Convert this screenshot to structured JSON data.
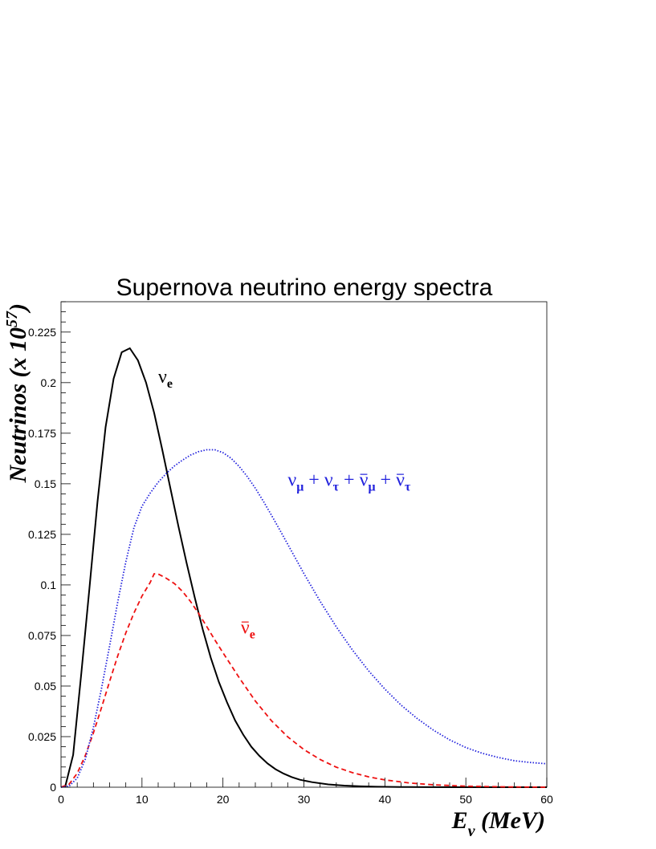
{
  "chart_data": {
    "type": "line",
    "title": "Supernova neutrino energy spectra",
    "xlabel": {
      "main": "E",
      "sub": "ν",
      "rest": " (MeV)"
    },
    "ylabel": {
      "main": "Neutrinos (x 10",
      "sup": "57",
      "rest": ")"
    },
    "xlim": [
      0,
      60
    ],
    "ylim": [
      0,
      0.24
    ],
    "xticks": [
      0,
      10,
      20,
      30,
      40,
      50,
      60
    ],
    "yticks": [
      0,
      0.025,
      0.05,
      0.075,
      0.1,
      0.125,
      0.15,
      0.175,
      0.2,
      0.225
    ],
    "xtick_labels": [
      "0",
      "10",
      "20",
      "30",
      "40",
      "50",
      "60"
    ],
    "ytick_labels": [
      "0",
      "0.025",
      "0.05",
      "0.075",
      "0.1",
      "0.125",
      "0.15",
      "0.175",
      "0.2",
      "0.225"
    ],
    "grid": false,
    "series": [
      {
        "color": "#000000",
        "style": "solid",
        "x": [
          0.5,
          1.5,
          2.5,
          3.5,
          4.5,
          5.5,
          6.5,
          7.5,
          8.5,
          9.5,
          10.5,
          11.5,
          12.5,
          13.5,
          14.5,
          15.5,
          16.5,
          17.5,
          18.5,
          19.5,
          20.5,
          21.5,
          22.5,
          23.5,
          24.5,
          25.5,
          26.5,
          27.5,
          28.5,
          29.5,
          31,
          33,
          35,
          37,
          39,
          42,
          45,
          50,
          55,
          60
        ],
        "y": [
          0.0,
          0.016,
          0.056,
          0.098,
          0.141,
          0.178,
          0.202,
          0.215,
          0.217,
          0.211,
          0.2,
          0.185,
          0.167,
          0.148,
          0.129,
          0.111,
          0.094,
          0.078,
          0.064,
          0.052,
          0.042,
          0.033,
          0.026,
          0.02,
          0.0155,
          0.0118,
          0.0089,
          0.0067,
          0.005,
          0.0037,
          0.0025,
          0.0014,
          0.00078,
          0.00043,
          0.00023,
          0.0001,
          4e-05,
          1e-05,
          0.0,
          0.0
        ]
      },
      {
        "color": "#ee1111",
        "style": "dashed",
        "x": [
          0,
          1,
          2,
          3,
          4,
          5,
          6,
          7,
          8,
          9,
          10,
          11,
          11.5,
          12,
          13,
          14,
          15,
          16,
          17,
          18,
          19,
          20,
          22,
          24,
          26,
          28,
          30,
          32,
          34,
          36,
          38,
          40,
          43,
          46,
          50,
          55,
          60
        ],
        "y": [
          0.0,
          0.0015,
          0.0069,
          0.0157,
          0.0268,
          0.0393,
          0.0523,
          0.0649,
          0.0763,
          0.0861,
          0.0945,
          0.1011,
          0.1055,
          0.1054,
          0.1033,
          0.1007,
          0.0968,
          0.0918,
          0.0859,
          0.0794,
          0.0728,
          0.0665,
          0.0542,
          0.0426,
          0.0328,
          0.0249,
          0.0186,
          0.0137,
          0.0099,
          0.0072,
          0.0051,
          0.0036,
          0.0021,
          0.0012,
          0.0005,
          0.00015,
          0.0
        ]
      },
      {
        "color": "#2222dd",
        "style": "dotted",
        "x": [
          0,
          1,
          2,
          3,
          4,
          5,
          6,
          7,
          8,
          9,
          10,
          11,
          12,
          13,
          14,
          15,
          16,
          17,
          18,
          19,
          20,
          21,
          22,
          23,
          24,
          25,
          26,
          27,
          28,
          29,
          30,
          32,
          34,
          36,
          38,
          40,
          42,
          44,
          46,
          48,
          50,
          52,
          54,
          56,
          58,
          60
        ],
        "y": [
          0.0,
          0.0006,
          0.0045,
          0.0139,
          0.0295,
          0.0488,
          0.0698,
          0.0915,
          0.1114,
          0.1283,
          0.1389,
          0.1453,
          0.1508,
          0.1551,
          0.1588,
          0.1617,
          0.1642,
          0.1659,
          0.1668,
          0.1668,
          0.1654,
          0.1626,
          0.1586,
          0.1536,
          0.1478,
          0.1413,
          0.1344,
          0.1273,
          0.1201,
          0.1129,
          0.1056,
          0.0919,
          0.0793,
          0.0678,
          0.0575,
          0.0485,
          0.0406,
          0.0339,
          0.0282,
          0.0234,
          0.0196,
          0.0168,
          0.0147,
          0.0131,
          0.0122,
          0.0116
        ]
      }
    ],
    "annotations": [
      {
        "color": "#000000",
        "x": 12,
        "y": 0.2,
        "parts": [
          {
            "t": "ν",
            "bar": false
          },
          {
            "t": "e",
            "sub": true
          }
        ]
      },
      {
        "color": "#ee1111",
        "x": 22.2,
        "y": 0.076,
        "parts": [
          {
            "t": "ν",
            "bar": true
          },
          {
            "t": "e",
            "sub": true
          }
        ]
      },
      {
        "color": "#2222dd",
        "x": 28,
        "y": 0.149,
        "parts": [
          {
            "t": "ν",
            "bar": false
          },
          {
            "t": "μ",
            "sub": true
          },
          {
            "t": " + ",
            "bar": false
          },
          {
            "t": "ν",
            "bar": false
          },
          {
            "t": "τ",
            "sub": true
          },
          {
            "t": " + ",
            "bar": false
          },
          {
            "t": "ν",
            "bar": true
          },
          {
            "t": "μ",
            "sub": true
          },
          {
            "t": " + ",
            "bar": false
          },
          {
            "t": "ν",
            "bar": true
          },
          {
            "t": "τ",
            "sub": true
          }
        ]
      }
    ]
  }
}
